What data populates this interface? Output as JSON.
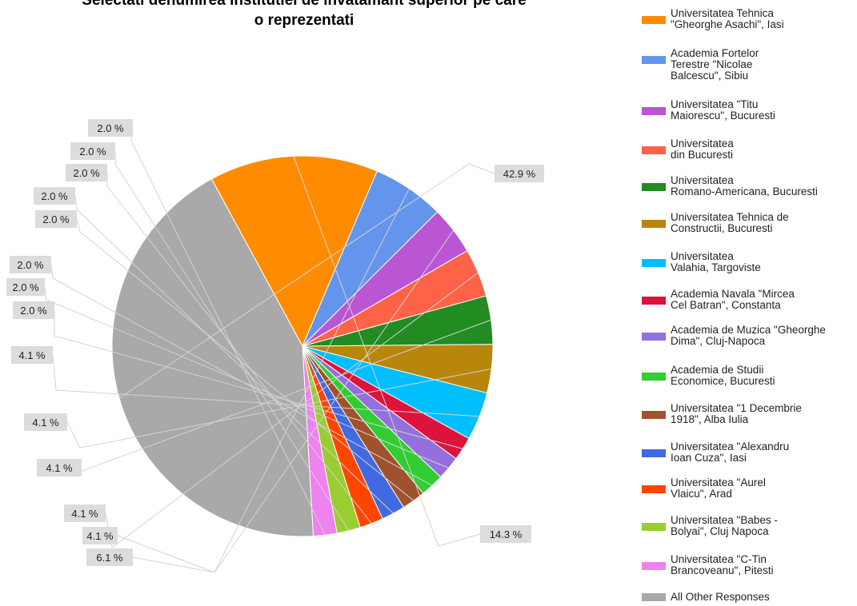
{
  "chart_data": {
    "type": "pie",
    "title": [
      "Selectati denumirea institutiei de invatamant superior pe care",
      "o reprezentati"
    ],
    "slices": [
      {
        "name": "Universitatea Tehnica \"Gheorghe Asachi\", Iasi",
        "value": 14.3,
        "label": "14.3 %",
        "color": "#ff8c00"
      },
      {
        "name": "Academia Fortelor Terestre \"Nicolae Balcescu\", Sibiu",
        "value": 6.1,
        "label": "6.1 %",
        "color": "#6495ed"
      },
      {
        "name": "Universitatea \"Titu Maiorescu\", Bucuresti",
        "value": 4.1,
        "label": "4.1 %",
        "color": "#ba55d3"
      },
      {
        "name": "Universitatea din Bucuresti",
        "value": 4.1,
        "label": "4.1 %",
        "color": "#ff6347"
      },
      {
        "name": "Universitatea Romano-Americana, Bucuresti",
        "value": 4.1,
        "label": "4.1 %",
        "color": "#228b22"
      },
      {
        "name": "Universitatea Tehnica de Constructii, Bucuresti",
        "value": 4.1,
        "label": "4.1 %",
        "color": "#b8860b"
      },
      {
        "name": "Universitatea Valahia, Targoviste",
        "value": 4.1,
        "label": "4.1 %",
        "color": "#00bfff"
      },
      {
        "name": "Academia Navala \"Mircea Cel Batran\", Constanta",
        "value": 2.0,
        "label": "2.0 %",
        "color": "#dc143c"
      },
      {
        "name": "Academia de Muzica \"Gheorghe Dima\", Cluj-Napoca",
        "value": 2.0,
        "label": "2.0 %",
        "color": "#9370db"
      },
      {
        "name": "Academia de Studii Economice, Bucuresti",
        "value": 2.0,
        "label": "2.0 %",
        "color": "#32cd32"
      },
      {
        "name": "Universitatea \"1 Decembrie 1918\", Alba Iulia",
        "value": 2.0,
        "label": "2.0 %",
        "color": "#a0522d"
      },
      {
        "name": "Universitatea \"Alexandru Ioan Cuza\", Iasi",
        "value": 2.0,
        "label": "2.0 %",
        "color": "#4169e1"
      },
      {
        "name": "Universitatea \"Aurel Vlaicu\", Arad",
        "value": 2.0,
        "label": "2.0 %",
        "color": "#ff4500"
      },
      {
        "name": "Universitatea \"Babes - Bolyai\", Cluj Napoca",
        "value": 2.0,
        "label": "2.0 %",
        "color": "#9acd32"
      },
      {
        "name": "Universitatea \"C-Tin Brancoveanu\", Pitesti",
        "value": 2.0,
        "label": "2.0 %",
        "color": "#ee82ee"
      },
      {
        "name": "All Other Responses",
        "value": 42.9,
        "label": "42.9 %",
        "color": "#a9a9a9"
      }
    ],
    "legend_position": "right"
  },
  "legend": {
    "items": [
      "Universitatea Tehnica\n\"Gheorghe Asachi\", Iasi",
      "Academia Fortelor\nTerestre \"Nicolae\nBalcescu\", Sibiu",
      "Universitatea \"Titu\nMaiorescu\", Bucuresti",
      "Universitatea\ndin Bucuresti",
      "Universitatea\nRomano-Americana, Bucuresti",
      "Universitatea Tehnica de\nConstructii, Bucuresti",
      "Universitatea\nValahia, Targoviste",
      "Academia Navala \"Mircea\nCel Batran\", Constanta",
      "Academia de Muzica \"Gheorghe\nDima\", Cluj-Napoca",
      "Academia de Studii\nEconomice, Bucuresti",
      "Universitatea \"1 Decembrie\n1918\", Alba Iulia",
      "Universitatea \"Alexandru\nIoan Cuza\", Iasi",
      "Universitatea \"Aurel\nVlaicu\", Arad",
      "Universitatea \"Babes -\nBolyai\", Cluj Napoca",
      "Universitatea \"C-Tin\nBrancoveanu\", Pitesti",
      "All Other Responses"
    ]
  }
}
